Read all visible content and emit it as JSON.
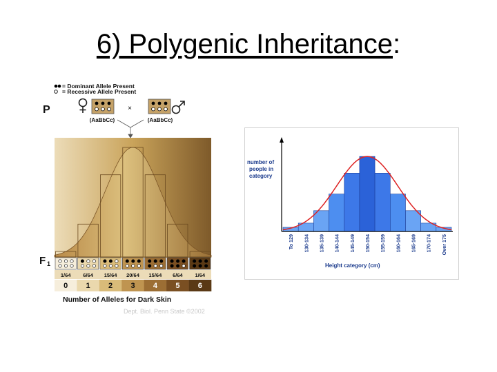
{
  "slide": {
    "title_main": "6) Polygenic Inheritance",
    "title_colon": ":"
  },
  "left_figure": {
    "legend": {
      "dominant": "= Dominant Allele Present",
      "recessive": "= Recessive Allele Present"
    },
    "p_label": "P",
    "f1_label": "F",
    "f1_subscript": "1",
    "cross_symbol": "×",
    "parent_genotypes": [
      "(AaBbCc)",
      "(AaBbCc)"
    ],
    "credit": "Dept. Biol. Penn State ©2002",
    "bottom_colors": [
      "#f6eedc",
      "#ead8ad",
      "#d9bb79",
      "#bf9450",
      "#9c6e34",
      "#7a4f22",
      "#5a3915"
    ]
  },
  "chart_data": [
    {
      "type": "bar",
      "title": "",
      "xlabel": "Number of Alleles for Dark Skin",
      "ylabel": "",
      "categories": [
        "0",
        "1",
        "2",
        "3",
        "4",
        "5",
        "6"
      ],
      "fraction_labels": [
        "1/64",
        "6/64",
        "15/64",
        "20/64",
        "15/64",
        "6/64",
        "1/64"
      ],
      "values": [
        1,
        6,
        15,
        20,
        15,
        6,
        1
      ],
      "ylim": [
        0,
        21
      ],
      "curve": "normal",
      "grid": false
    },
    {
      "type": "bar",
      "title": "",
      "xlabel": "Height category (cm)",
      "ylabel": "number of people in category",
      "ylabel_lines": [
        "number of",
        "people in",
        "category"
      ],
      "categories": [
        "To 129",
        "130-134",
        "135-139",
        "140-144",
        "145-149",
        "150-154",
        "155-159",
        "160-164",
        "165-169",
        "170-174",
        "Over 175"
      ],
      "values": [
        1,
        2,
        5,
        9,
        14,
        18,
        14,
        9,
        5,
        2,
        1
      ],
      "ylim": [
        0,
        21
      ],
      "curve": "normal",
      "curve_color": "#dd2222",
      "bar_color": "#4d8ef0",
      "grid": false
    }
  ]
}
